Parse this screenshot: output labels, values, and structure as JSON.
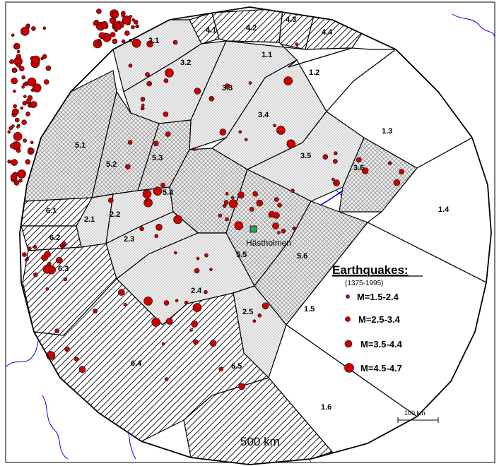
{
  "zones": [
    {
      "id": "z11",
      "label": "1.1",
      "pattern": "blank"
    },
    {
      "id": "z12",
      "label": "1.2",
      "pattern": "blank"
    },
    {
      "id": "z13",
      "label": "1.3",
      "pattern": "blank"
    },
    {
      "id": "z14",
      "label": "1.4",
      "pattern": "blank"
    },
    {
      "id": "z15",
      "label": "1.5",
      "pattern": "blank"
    },
    {
      "id": "z16",
      "label": "1.6",
      "pattern": "blank"
    },
    {
      "id": "z21",
      "label": "2.1",
      "pattern": "dots"
    },
    {
      "id": "z22",
      "label": "2.2",
      "pattern": "dots"
    },
    {
      "id": "z23",
      "label": "2.3",
      "pattern": "dots"
    },
    {
      "id": "z24",
      "label": "2.4",
      "pattern": "dots"
    },
    {
      "id": "z25",
      "label": "2.5",
      "pattern": "dots"
    },
    {
      "id": "z31",
      "label": "3.1",
      "pattern": "dots"
    },
    {
      "id": "z32",
      "label": "3.2",
      "pattern": "dots"
    },
    {
      "id": "z33",
      "label": "3.3",
      "pattern": "dots"
    },
    {
      "id": "z34",
      "label": "3.4",
      "pattern": "dots"
    },
    {
      "id": "z35",
      "label": "3.5",
      "pattern": "dots"
    },
    {
      "id": "z36",
      "label": "3.6",
      "pattern": "crosshatch"
    },
    {
      "id": "z41",
      "label": "4.1",
      "pattern": "hatch"
    },
    {
      "id": "z42",
      "label": "4.2",
      "pattern": "hatch"
    },
    {
      "id": "z43",
      "label": "4.3",
      "pattern": "hatch"
    },
    {
      "id": "z44",
      "label": "4.4",
      "pattern": "hatch"
    },
    {
      "id": "z51",
      "label": "5.1",
      "pattern": "crosshatch"
    },
    {
      "id": "z52",
      "label": "5.2",
      "pattern": "crosshatch"
    },
    {
      "id": "z53",
      "label": "5.3",
      "pattern": "crosshatch"
    },
    {
      "id": "z54",
      "label": "5.4",
      "pattern": "crosshatch"
    },
    {
      "id": "z55",
      "label": "5.5",
      "pattern": "crosshatch"
    },
    {
      "id": "z56",
      "label": "5.6",
      "pattern": "crosshatch"
    },
    {
      "id": "z61",
      "label": "6.1",
      "pattern": "hatch"
    },
    {
      "id": "z62",
      "label": "6.2",
      "pattern": "hatch"
    },
    {
      "id": "z63",
      "label": "6.3",
      "pattern": "hatch"
    },
    {
      "id": "z64",
      "label": "6.4",
      "pattern": "hatch"
    },
    {
      "id": "z65",
      "label": "6.5",
      "pattern": "hatch"
    }
  ],
  "site": {
    "name": "Hästholmen",
    "marker_color": "#2e9e5a"
  },
  "radius_label": "500 km",
  "scale_bar": {
    "label": "100 km"
  },
  "legend": {
    "title": "Earthquakes:",
    "period": "(1375-1995)",
    "items": [
      {
        "label": "M=1.5-2.4"
      },
      {
        "label": "M=2.5-3.4"
      },
      {
        "label": "M=3.5-4.4"
      },
      {
        "label": "M=4.5-4.7"
      }
    ]
  },
  "colors": {
    "quake_fill": "#cc0000",
    "coastline": "#0000ee",
    "border": "#cc00cc",
    "zone_outline": "#000000"
  }
}
